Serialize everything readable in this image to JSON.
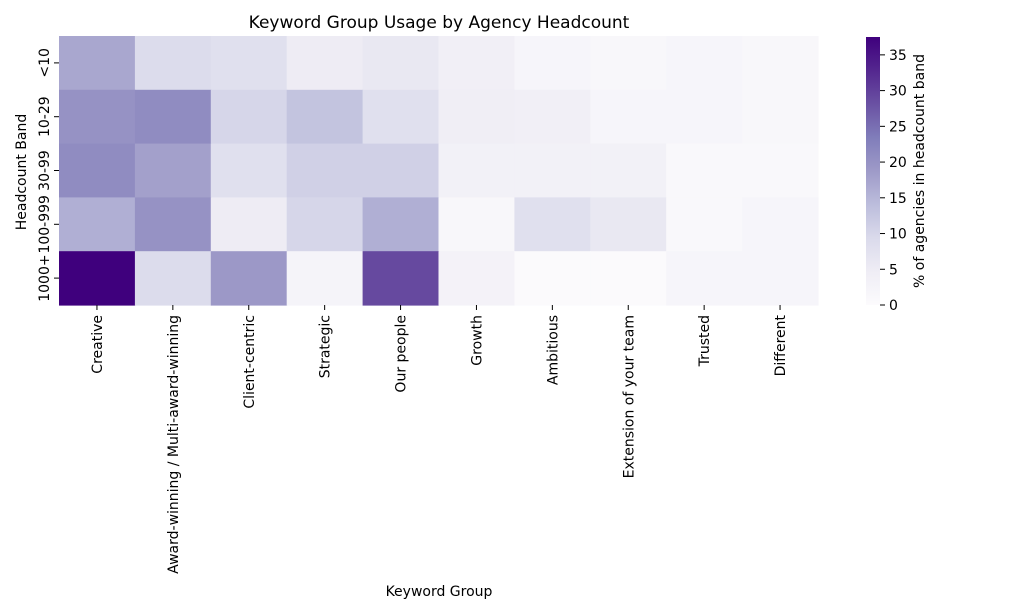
{
  "chart_data": {
    "type": "heatmap",
    "title": "Keyword Group Usage by Agency Headcount",
    "xlabel": "Keyword Group",
    "ylabel": "Headcount Band",
    "colorbar_label": "% of agencies in headcount band",
    "colormap": "Purples",
    "color_range": [
      0,
      37.5
    ],
    "colorbar_ticks": [
      0,
      5,
      10,
      15,
      20,
      25,
      30,
      35
    ],
    "grid": false,
    "x_categories": [
      "Creative",
      "Award-winning / Multi-award-winning",
      "Client-centric",
      "Strategic",
      "Our people",
      "Growth",
      "Ambitious",
      "Extension of your team",
      "Trusted",
      "Different"
    ],
    "y_categories": [
      "<10",
      "10-29",
      "30-99",
      "100-999",
      "1000+"
    ],
    "values": [
      [
        17,
        9,
        8,
        5,
        6,
        4,
        2,
        1.5,
        2,
        1.5
      ],
      [
        20,
        21,
        10,
        13,
        8,
        4.5,
        4,
        2,
        2,
        1.5
      ],
      [
        21,
        18,
        8,
        11,
        11,
        3.5,
        3.5,
        3.5,
        1,
        1
      ],
      [
        16,
        20,
        5,
        10,
        16,
        1.5,
        8,
        6,
        1,
        2
      ],
      [
        37.5,
        9,
        19,
        2.5,
        29,
        3,
        0.5,
        0.5,
        2,
        2
      ]
    ]
  }
}
